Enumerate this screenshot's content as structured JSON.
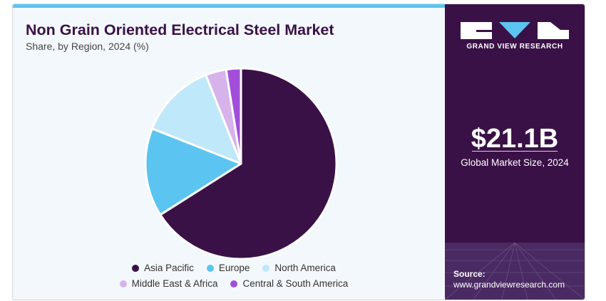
{
  "header": {
    "title": "Non Grain Oriented Electrical Steel Market",
    "subtitle": "Share, by Region, 2024 (%)"
  },
  "brand": {
    "logo_text": "GRAND VIEW RESEARCH",
    "logo_icon": "gvr-logo-icon",
    "market_size": "$21.1B",
    "market_size_label": "Global Market Size, 2024",
    "source_label": "Source:",
    "source_url": "www.grandviewresearch.com"
  },
  "colors": {
    "accent_bar": "#5bc4f0",
    "side_panel": "#3a1146",
    "chart_background": "#f3f8fc"
  },
  "chart_data": {
    "type": "pie",
    "title": "Non Grain Oriented Electrical Steel Market",
    "subtitle": "Share, by Region, 2024 (%)",
    "legend_position": "bottom",
    "slices": [
      {
        "name": "Asia Pacific",
        "value": 66.0,
        "color": "#3a1146"
      },
      {
        "name": "Europe",
        "value": 15.0,
        "color": "#5bc4f0"
      },
      {
        "name": "North America",
        "value": 13.0,
        "color": "#bfe8fa"
      },
      {
        "name": "Middle East & Africa",
        "value": 3.5,
        "color": "#d7b3ec"
      },
      {
        "name": "Central & South America",
        "value": 2.5,
        "color": "#a24ed9"
      }
    ]
  }
}
